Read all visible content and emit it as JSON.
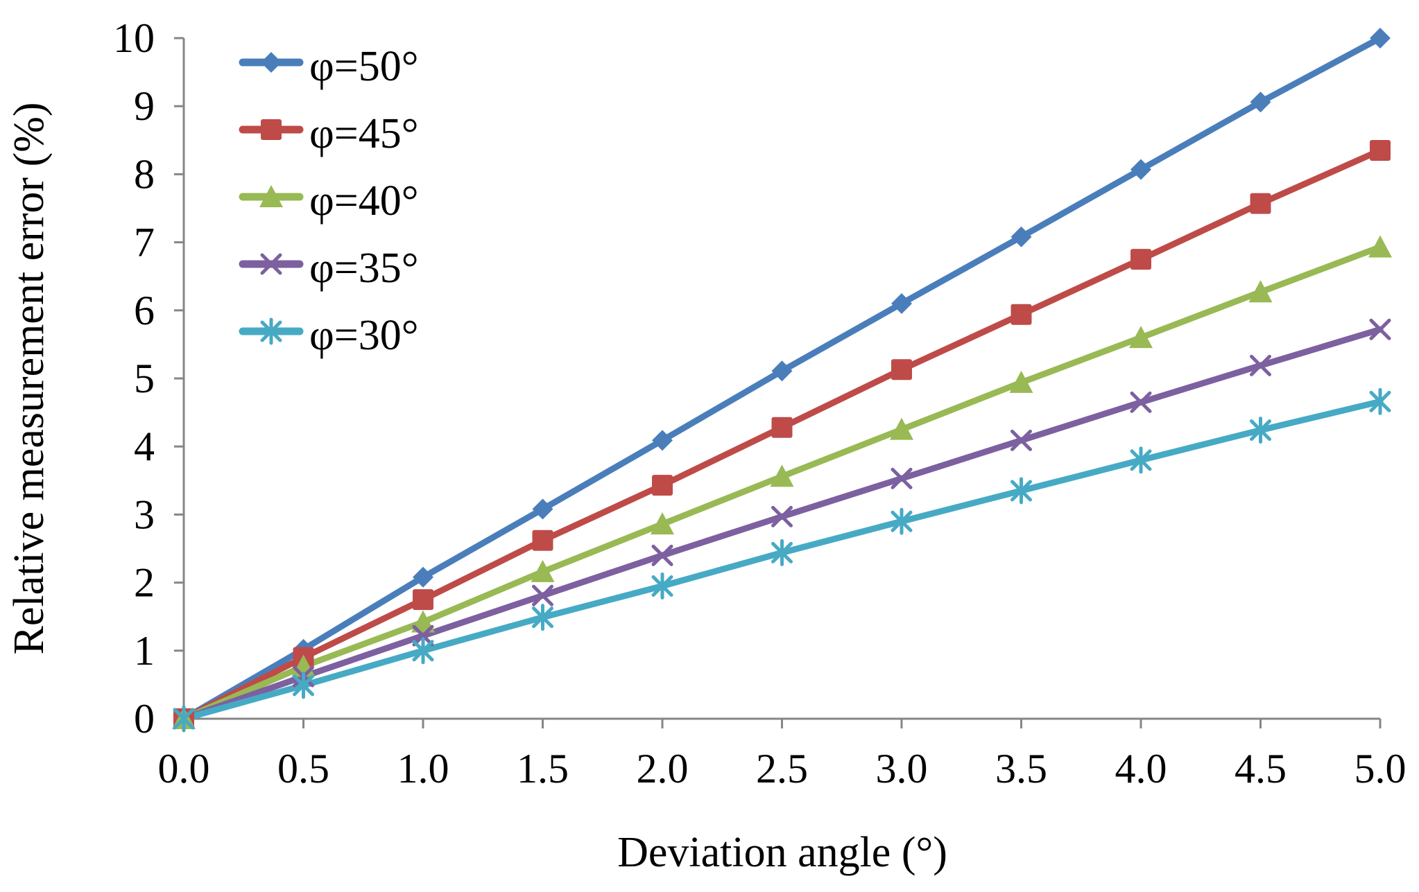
{
  "chart_data": {
    "type": "line",
    "title": "",
    "xlabel": "Deviation angle (°)",
    "ylabel": "Relative measurement error (%)",
    "xlim": [
      0,
      5
    ],
    "ylim": [
      0,
      10
    ],
    "grid": false,
    "legend_position": "top-left",
    "x": [
      0.0,
      0.5,
      1.0,
      1.5,
      2.0,
      2.5,
      3.0,
      3.5,
      4.0,
      4.5,
      5.0
    ],
    "x_tick_labels": [
      "0.0",
      "0.5",
      "1.0",
      "1.5",
      "2.0",
      "2.5",
      "3.0",
      "3.5",
      "4.0",
      "4.5",
      "5.0"
    ],
    "y_tick_labels": [
      "0",
      "1",
      "2",
      "3",
      "4",
      "5",
      "6",
      "7",
      "8",
      "9",
      "10"
    ],
    "series": [
      {
        "name": "φ=50°",
        "color": "#4a7ebb",
        "marker": "diamond",
        "values": [
          0,
          1.02,
          2.08,
          3.08,
          4.09,
          5.11,
          6.1,
          7.08,
          8.07,
          9.06,
          10.0
        ]
      },
      {
        "name": "φ=45°",
        "color": "#be4b48",
        "marker": "square",
        "values": [
          0,
          0.9,
          1.75,
          2.62,
          3.43,
          4.28,
          5.13,
          5.94,
          6.75,
          7.57,
          8.35
        ]
      },
      {
        "name": "φ=40°",
        "color": "#98b954",
        "marker": "triangle",
        "values": [
          0,
          0.77,
          1.42,
          2.16,
          2.86,
          3.56,
          4.25,
          4.94,
          5.6,
          6.27,
          6.93
        ]
      },
      {
        "name": "φ=35°",
        "color": "#7d60a0",
        "marker": "x",
        "values": [
          0,
          0.62,
          1.22,
          1.81,
          2.4,
          2.97,
          3.53,
          4.09,
          4.65,
          5.19,
          5.72
        ]
      },
      {
        "name": "φ=30°",
        "color": "#46aac5",
        "marker": "star",
        "values": [
          0,
          0.49,
          1.0,
          1.49,
          1.95,
          2.44,
          2.9,
          3.35,
          3.8,
          4.24,
          4.66
        ]
      }
    ]
  }
}
